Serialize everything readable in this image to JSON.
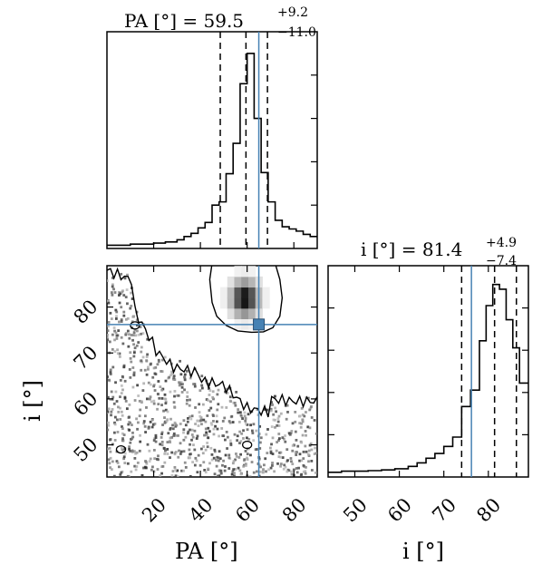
{
  "chart_data": [
    {
      "type": "histogram",
      "panel": "PA marginal",
      "title": {
        "main": "PA [°] = 59.5",
        "sup": "+9.2",
        "sub": "−11.0"
      },
      "xlim": [
        0,
        90
      ],
      "bins": [
        {
          "x0": 0,
          "x1": 10,
          "y": 0.015
        },
        {
          "x0": 10,
          "x1": 20,
          "y": 0.02
        },
        {
          "x0": 20,
          "x1": 25,
          "y": 0.025
        },
        {
          "x0": 25,
          "x1": 30,
          "y": 0.03
        },
        {
          "x0": 30,
          "x1": 33,
          "y": 0.04
        },
        {
          "x0": 33,
          "x1": 36,
          "y": 0.055
        },
        {
          "x0": 36,
          "x1": 39,
          "y": 0.07
        },
        {
          "x0": 39,
          "x1": 42,
          "y": 0.095
        },
        {
          "x0": 42,
          "x1": 45,
          "y": 0.12
        },
        {
          "x0": 45,
          "x1": 48,
          "y": 0.2
        },
        {
          "x0": 48,
          "x1": 51,
          "y": 0.215
        },
        {
          "x0": 51,
          "x1": 54,
          "y": 0.345
        },
        {
          "x0": 54,
          "x1": 57,
          "y": 0.485
        },
        {
          "x0": 57,
          "x1": 60,
          "y": 0.76
        },
        {
          "x0": 60,
          "x1": 63,
          "y": 0.9
        },
        {
          "x0": 63,
          "x1": 66,
          "y": 0.6
        },
        {
          "x0": 66,
          "x1": 69,
          "y": 0.35
        },
        {
          "x0": 69,
          "x1": 72,
          "y": 0.215
        },
        {
          "x0": 72,
          "x1": 75,
          "y": 0.13
        },
        {
          "x0": 75,
          "x1": 78,
          "y": 0.1
        },
        {
          "x0": 78,
          "x1": 81,
          "y": 0.09
        },
        {
          "x0": 81,
          "x1": 84,
          "y": 0.08
        },
        {
          "x0": 84,
          "x1": 87,
          "y": 0.065
        },
        {
          "x0": 87,
          "x1": 90,
          "y": 0.055
        }
      ],
      "ylim": [
        0,
        1
      ],
      "quantiles": [
        48.5,
        59.5,
        68.7
      ],
      "truth": 65
    },
    {
      "type": "heatmap",
      "panel": "PA vs i joint",
      "xlim": [
        0,
        90
      ],
      "ylim": [
        43,
        89
      ],
      "xticks": [
        20,
        40,
        60,
        80
      ],
      "yticks": [
        50,
        60,
        70,
        80
      ],
      "xlabel": "PA [°]",
      "ylabel": "i [°]",
      "density_peak": {
        "PA": 59,
        "i": 82
      },
      "truth": {
        "PA": 65,
        "i": 76.2
      }
    },
    {
      "type": "histogram",
      "panel": "i marginal",
      "title": {
        "main": "i [°] = 81.4",
        "sup": "+4.9",
        "sub": "−7.4"
      },
      "xlim": [
        44,
        89
      ],
      "bins": [
        {
          "x0": 44,
          "x1": 47,
          "y": 0.02
        },
        {
          "x0": 47,
          "x1": 50,
          "y": 0.025
        },
        {
          "x0": 50,
          "x1": 53,
          "y": 0.025
        },
        {
          "x0": 53,
          "x1": 56,
          "y": 0.027
        },
        {
          "x0": 56,
          "x1": 59,
          "y": 0.03
        },
        {
          "x0": 59,
          "x1": 62,
          "y": 0.035
        },
        {
          "x0": 62,
          "x1": 64,
          "y": 0.045
        },
        {
          "x0": 64,
          "x1": 66,
          "y": 0.06
        },
        {
          "x0": 66,
          "x1": 68,
          "y": 0.08
        },
        {
          "x0": 68,
          "x1": 70,
          "y": 0.1
        },
        {
          "x0": 70,
          "x1": 72,
          "y": 0.13
        },
        {
          "x0": 72,
          "x1": 74,
          "y": 0.17
        },
        {
          "x0": 74,
          "x1": 76,
          "y": 0.3
        },
        {
          "x0": 76,
          "x1": 78,
          "y": 0.37
        },
        {
          "x0": 78,
          "x1": 79.5,
          "y": 0.58
        },
        {
          "x0": 79.5,
          "x1": 81,
          "y": 0.73
        },
        {
          "x0": 81,
          "x1": 82.5,
          "y": 0.82
        },
        {
          "x0": 82.5,
          "x1": 84,
          "y": 0.8
        },
        {
          "x0": 84,
          "x1": 85.5,
          "y": 0.67
        },
        {
          "x0": 85.5,
          "x1": 87,
          "y": 0.55
        },
        {
          "x0": 87,
          "x1": 89,
          "y": 0.4
        }
      ],
      "ylim": [
        0,
        0.9
      ],
      "xticks": [
        50,
        60,
        70,
        80
      ],
      "xlabel": "i [°]",
      "quantiles": [
        74.0,
        81.4,
        86.3
      ],
      "truth": 76.2
    }
  ],
  "colors": {
    "histogram": "#000000",
    "truth": "#4682b4",
    "truth_marker": "#4682b4",
    "density": "#000000"
  }
}
